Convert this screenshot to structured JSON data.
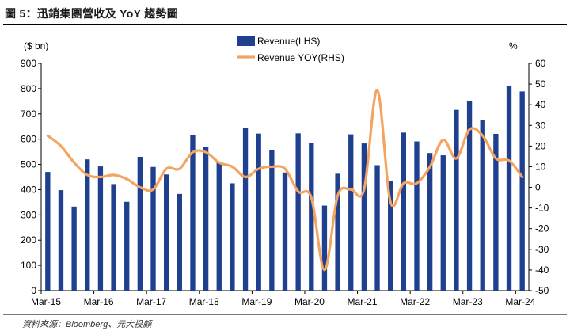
{
  "header": {
    "title": "圖 5：迅銷集團營收及 YoY 趨勢圖",
    "source": "資料來源：Bloomberg、元大投顧"
  },
  "chart_data": {
    "type": "bar+line",
    "title": "",
    "ylabel_left": "($ bn)",
    "ylabel_right": "%",
    "ylim_left": [
      0,
      900
    ],
    "ylim_right": [
      -50,
      60
    ],
    "yticks_left": [
      0,
      100,
      200,
      300,
      400,
      500,
      600,
      700,
      800,
      900
    ],
    "yticks_right": [
      -50,
      -40,
      -30,
      -20,
      -10,
      0,
      10,
      20,
      30,
      40,
      50,
      60
    ],
    "x_labels": [
      "Mar-15",
      "Mar-16",
      "Mar-17",
      "Mar-18",
      "Mar-19",
      "Mar-20",
      "Mar-21",
      "Mar-22",
      "Mar-23",
      "Mar-24"
    ],
    "quarters": [
      "Mar-15",
      "Jun-15",
      "Sep-15",
      "Dec-15",
      "Mar-16",
      "Jun-16",
      "Sep-16",
      "Dec-16",
      "Mar-17",
      "Jun-17",
      "Sep-17",
      "Dec-17",
      "Mar-18",
      "Jun-18",
      "Sep-18",
      "Dec-18",
      "Mar-19",
      "Jun-19",
      "Sep-19",
      "Dec-19",
      "Mar-20",
      "Jun-20",
      "Sep-20",
      "Dec-20",
      "Mar-21",
      "Jun-21",
      "Sep-21",
      "Dec-21",
      "Mar-22",
      "Jun-22",
      "Sep-22",
      "Dec-22",
      "Mar-23",
      "Jun-23",
      "Sep-23",
      "Dec-23",
      "Mar-24"
    ],
    "legend_position": "top-center",
    "series": [
      {
        "name": "Revenue(LHS)",
        "kind": "bar",
        "axis": "left",
        "color": "#1f3f8f",
        "values": [
          470,
          398,
          333,
          520,
          492,
          422,
          352,
          530,
          490,
          460,
          383,
          617,
          570,
          509,
          425,
          643,
          622,
          555,
          468,
          623,
          585,
          337,
          463,
          619,
          583,
          497,
          435,
          626,
          591,
          545,
          536,
          716,
          750,
          675,
          621,
          810,
          789
        ]
      },
      {
        "name": "Revenue YOY(RHS)",
        "kind": "line",
        "axis": "right",
        "color": "#f4a460",
        "values": [
          25,
          20,
          12,
          6,
          5,
          6,
          4,
          0,
          -1,
          9,
          9,
          17,
          17,
          12,
          10,
          5,
          9,
          10,
          9,
          -2,
          -5,
          -40,
          -4,
          -1,
          -1,
          47,
          -7,
          2,
          2,
          10,
          23,
          14,
          28,
          25,
          14,
          13,
          5
        ]
      }
    ]
  }
}
